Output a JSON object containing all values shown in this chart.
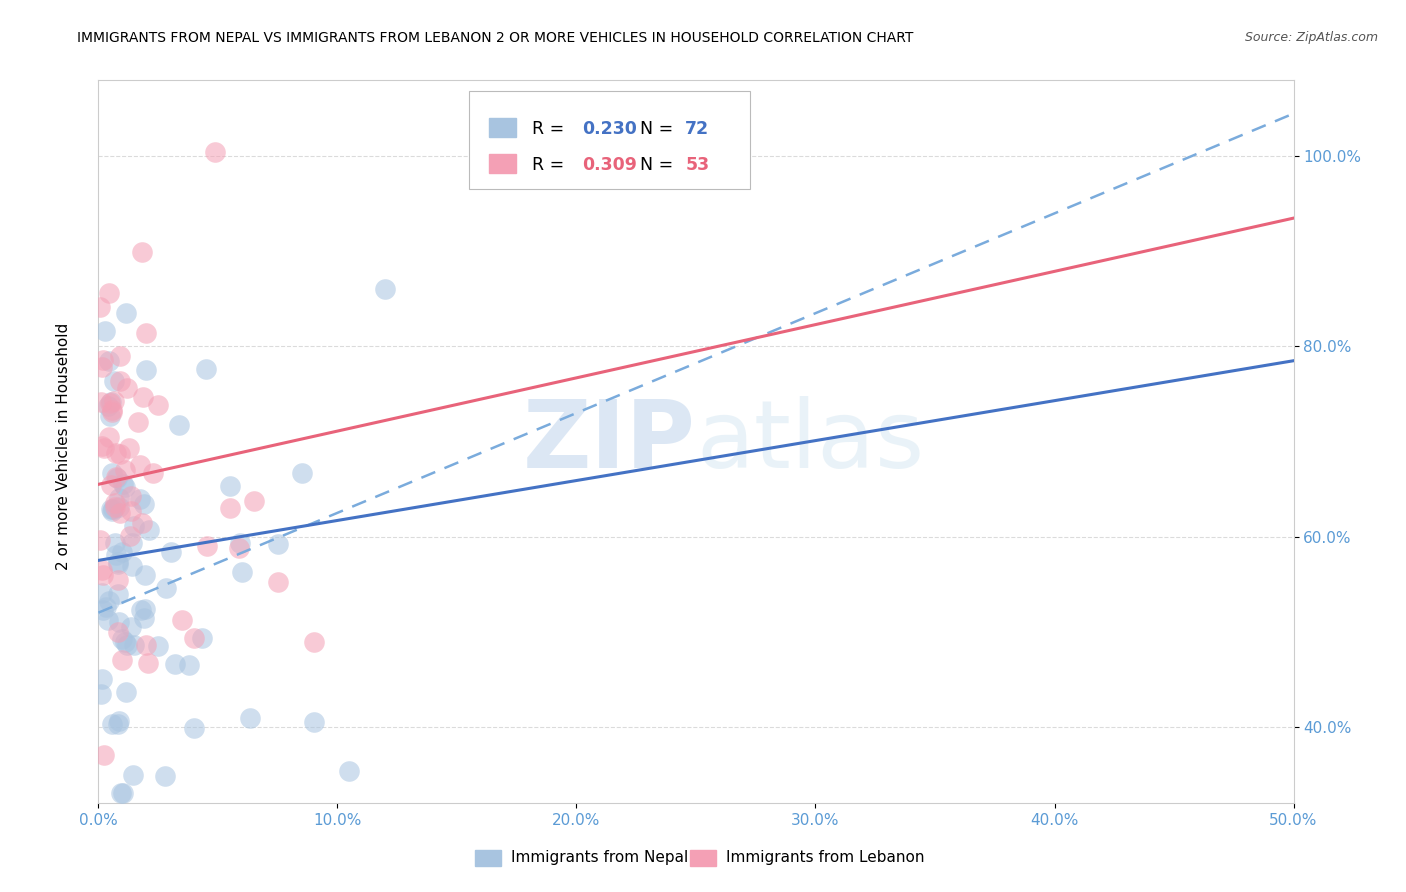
{
  "title": "IMMIGRANTS FROM NEPAL VS IMMIGRANTS FROM LEBANON 2 OR MORE VEHICLES IN HOUSEHOLD CORRELATION CHART",
  "source": "Source: ZipAtlas.com",
  "ylabel": "2 or more Vehicles in Household",
  "nepal_color": "#a8c4e0",
  "lebanon_color": "#f4a0b5",
  "nepal_line_color": "#4472C4",
  "lebanon_line_color": "#E8637A",
  "dashed_line_color": "#7aabdc",
  "nepal_N": 72,
  "lebanon_N": 53,
  "nepal_R": 0.23,
  "lebanon_R": 0.309,
  "watermark_zip": "ZIP",
  "watermark_atlas": "atlas",
  "background_color": "#ffffff",
  "grid_color": "#d8d8d8",
  "tick_color": "#5b9bd5",
  "xlim": [
    0,
    50
  ],
  "ylim": [
    32,
    108
  ],
  "x_ticks": [
    0,
    10,
    20,
    30,
    40,
    50
  ],
  "y_ticks": [
    40,
    60,
    80,
    100
  ],
  "nepal_intercept": 57.5,
  "nepal_slope": 0.42,
  "lebanon_intercept": 65.5,
  "lebanon_slope": 0.56,
  "dashed_intercept": 52.0,
  "dashed_slope": 1.05
}
